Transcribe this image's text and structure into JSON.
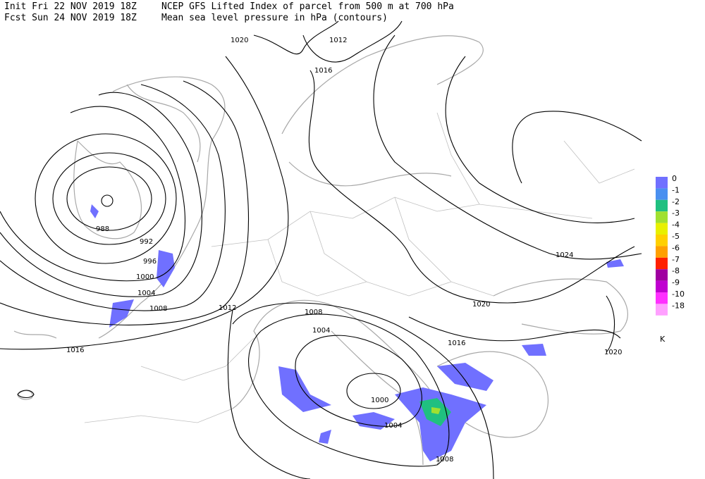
{
  "header": {
    "lines": [
      "Init  Fri 22 NOV 2019 18Z",
      "NCEP GFS Lifted Index of parcel from 500 m at 700 hPa",
      "Fcst Sun 24 NOV 2019 18Z",
      "Mean sea level pressure in hPa (contours)"
    ]
  },
  "contour_labels": [
    "1020",
    "1012",
    "1016",
    "988",
    "992",
    "996",
    "1000",
    "1004",
    "1008",
    "1012",
    "1016",
    "1008",
    "1004",
    "1016",
    "1000",
    "1004",
    "1008",
    "1024",
    "1020",
    "1020"
  ],
  "legend": {
    "items": [
      {
        "label": "0",
        "color": "#7070ff"
      },
      {
        "label": "-1",
        "color": "#4a90f0"
      },
      {
        "label": "-2",
        "color": "#20c080"
      },
      {
        "label": "-3",
        "color": "#a0e030"
      },
      {
        "label": "-4",
        "color": "#e8f000"
      },
      {
        "label": "-5",
        "color": "#ffd000"
      },
      {
        "label": "-6",
        "color": "#ffa000"
      },
      {
        "label": "-7",
        "color": "#ff2000"
      },
      {
        "label": "-8",
        "color": "#a000a0"
      },
      {
        "label": "-9",
        "color": "#c000d0"
      },
      {
        "label": "-10",
        "color": "#ff30ff"
      },
      {
        "label": "-18",
        "color": "#ffa0ff"
      }
    ],
    "unit": "K"
  }
}
